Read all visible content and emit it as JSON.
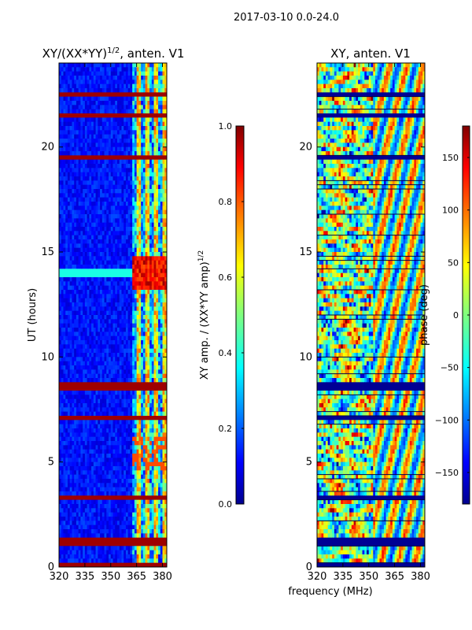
{
  "figure_title": "2017-03-10 0.0-24.0",
  "x_axis_label": "frequency (MHz)",
  "chart_data": [
    {
      "type": "heatmap",
      "title_main": "XY/(XX*YY)",
      "title_sup": "1/2",
      "title_end": ", anten. V1",
      "ylabel": "UT (hours)",
      "xlim": [
        320,
        382.5
      ],
      "ylim": [
        0,
        24
      ],
      "xticks": [
        "320",
        "335",
        "350",
        "365",
        "380"
      ],
      "yticks": [
        "0",
        "5",
        "10",
        "15",
        "20"
      ],
      "colorbar": {
        "range": [
          0.0,
          1.0
        ],
        "ticks": [
          "0.0",
          "0.2",
          "0.4",
          "0.6",
          "0.8",
          "1.0"
        ],
        "label_main": "XY amp. / (XX*YY amp)",
        "label_sup": "1/2",
        "colormap": "jet"
      },
      "features": {
        "bright_band_freq_start_mhz": 362,
        "flagged_rows_hours": [
          0.05,
          1.1,
          1.25,
          3.3,
          7.1,
          8.5,
          8.7,
          19.5,
          21.5,
          22.5
        ],
        "bright_line_hours": 14.0,
        "hot_blocks_hours": [
          13.8,
          14.3
        ]
      }
    },
    {
      "type": "heatmap",
      "title": "XY, anten. V1",
      "xlim": [
        320,
        382.5
      ],
      "ylim": [
        0,
        24
      ],
      "xticks": [
        "320",
        "335",
        "350",
        "365",
        "380"
      ],
      "yticks": [
        "0",
        "5",
        "10",
        "15",
        "20"
      ],
      "colorbar": {
        "range": [
          -180,
          180
        ],
        "ticks": [
          "−150",
          "−100",
          "−50",
          "0",
          "50",
          "100",
          "150"
        ],
        "label": "phase (deg)",
        "colormap": "jet"
      }
    }
  ],
  "colors": {
    "jet_dark_blue": "#00008f",
    "jet_red": "#ff0000",
    "jet_dark_red": "#800000"
  }
}
